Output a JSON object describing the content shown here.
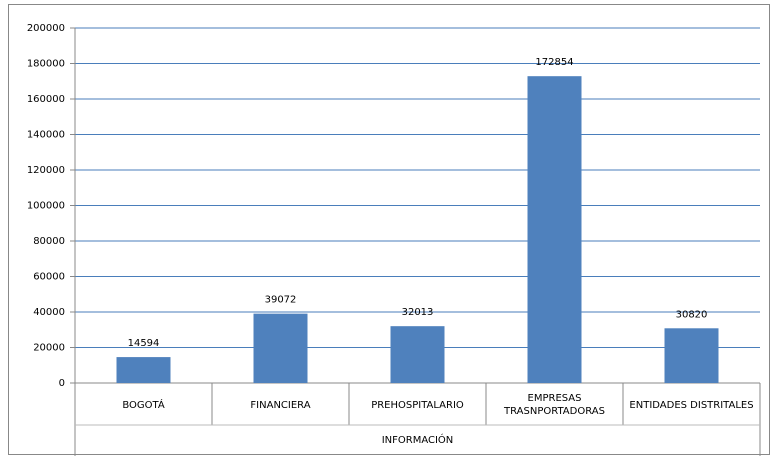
{
  "chart_data": {
    "type": "bar",
    "xlabel": "INFORMACIÓN",
    "categories": [
      "BOGOTÁ",
      "FINANCIERA",
      "PREHOSPITALARIO",
      "EMPRESAS TRASNPORTADORAS",
      "ENTIDADES DISTRITALES"
    ],
    "values": [
      14594,
      39072,
      32013,
      172854,
      30820
    ],
    "color": "#4f81bd",
    "ylim": [
      0,
      200000
    ],
    "yticks": [
      0,
      20000,
      40000,
      60000,
      80000,
      100000,
      120000,
      140000,
      160000,
      180000,
      200000
    ],
    "grid": true
  }
}
